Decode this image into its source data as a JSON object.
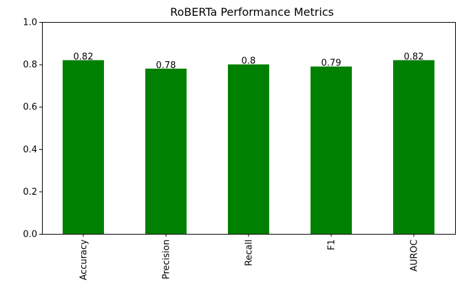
{
  "chart_data": {
    "type": "bar",
    "title": "RoBERTa Performance Metrics",
    "xlabel": "",
    "ylabel": "",
    "categories": [
      "Accuracy",
      "Precision",
      "Recall",
      "F1",
      "AUROC"
    ],
    "values": [
      0.82,
      0.78,
      0.8,
      0.79,
      0.82
    ],
    "value_labels": [
      "0.82",
      "0.78",
      "0.8",
      "0.79",
      "0.82"
    ],
    "ylim": [
      0,
      1.0
    ],
    "yticks": [
      0.0,
      0.2,
      0.4,
      0.6,
      0.8,
      1.0
    ],
    "ytick_labels": [
      "0.0",
      "0.2",
      "0.4",
      "0.6",
      "0.8",
      "1.0"
    ],
    "bar_color": "#008000",
    "grid": false,
    "legend": "none"
  }
}
